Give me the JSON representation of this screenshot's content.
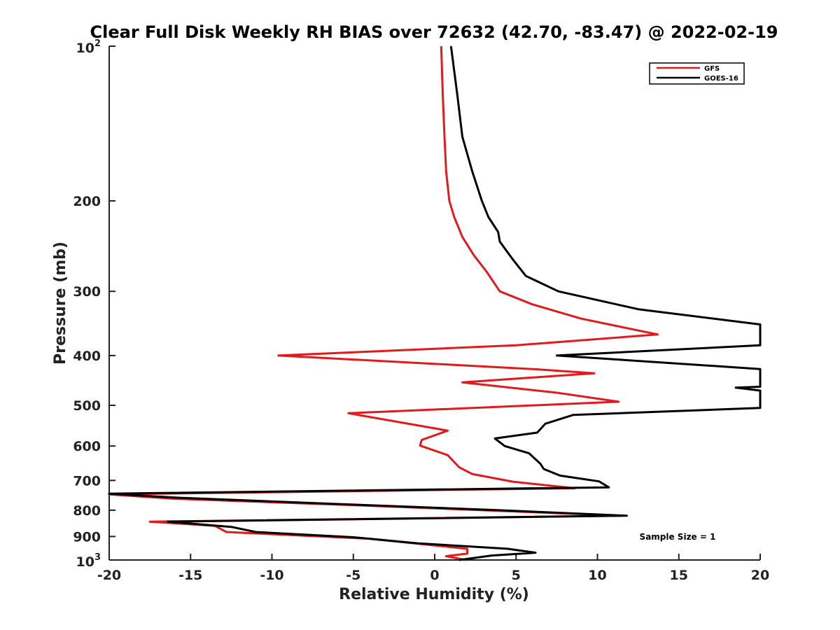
{
  "chart_data": {
    "type": "line",
    "title": "Clear Full Disk Weekly RH BIAS over 72632 (42.70, -83.47) @ 2022-02-19",
    "xlabel": "Relative Humidity (%)",
    "ylabel": "Pressure (mb)",
    "xlim": [
      -20,
      20
    ],
    "ylim": [
      100,
      1000
    ],
    "y_scale": "log",
    "y_reversed": true,
    "grid": false,
    "legend_position": "top-right",
    "x_ticks": [
      "-20",
      "-15",
      "-10",
      "-5",
      "0",
      "5",
      "10",
      "15",
      "20"
    ],
    "y_ticks": [
      {
        "value": 100,
        "base": "10",
        "exp": "2"
      },
      {
        "value": 200,
        "label": "200"
      },
      {
        "value": 300,
        "label": "300"
      },
      {
        "value": 400,
        "label": "400"
      },
      {
        "value": 500,
        "label": "500"
      },
      {
        "value": 600,
        "label": "600"
      },
      {
        "value": 700,
        "label": "700"
      },
      {
        "value": 800,
        "label": "800"
      },
      {
        "value": 900,
        "label": "900"
      },
      {
        "value": 1000,
        "base": "10",
        "exp": "3"
      }
    ],
    "annotation": "Sample Size = 1",
    "series": [
      {
        "name": "GFS",
        "color": "#e31a1c",
        "points": [
          [
            0.4,
            100
          ],
          [
            0.5,
            125
          ],
          [
            0.6,
            150
          ],
          [
            0.7,
            175
          ],
          [
            0.9,
            200
          ],
          [
            1.2,
            215
          ],
          [
            1.7,
            235
          ],
          [
            2.4,
            255
          ],
          [
            3.2,
            275
          ],
          [
            4.0,
            300
          ],
          [
            6.0,
            318
          ],
          [
            9.0,
            339
          ],
          [
            13.7,
            364
          ],
          [
            5.0,
            382
          ],
          [
            -9.6,
            400
          ],
          [
            6.0,
            425
          ],
          [
            9.8,
            433
          ],
          [
            1.7,
            451
          ],
          [
            7.6,
            473
          ],
          [
            11.3,
            492
          ],
          [
            -5.3,
            518
          ],
          [
            0.8,
            560
          ],
          [
            -0.8,
            584
          ],
          [
            -0.9,
            599
          ],
          [
            0.8,
            625
          ],
          [
            1.5,
            660
          ],
          [
            2.3,
            680
          ],
          [
            4.8,
            704
          ],
          [
            8.6,
            725
          ],
          [
            -20.0,
            745
          ],
          [
            -16.0,
            760
          ],
          [
            -5.0,
            782
          ],
          [
            11.5,
            820
          ],
          [
            -17.5,
            842
          ],
          [
            -13.5,
            858
          ],
          [
            -12.8,
            882
          ],
          [
            -4.0,
            909
          ],
          [
            2.0,
            951
          ],
          [
            2.0,
            972
          ],
          [
            0.7,
            983
          ],
          [
            1.9,
            1000
          ]
        ]
      },
      {
        "name": "GOES-16",
        "color": "#000000",
        "points": [
          [
            1.0,
            100
          ],
          [
            1.4,
            125
          ],
          [
            1.7,
            150
          ],
          [
            2.3,
            175
          ],
          [
            2.9,
            200
          ],
          [
            3.3,
            215
          ],
          [
            3.9,
            230
          ],
          [
            4.0,
            240
          ],
          [
            4.8,
            260
          ],
          [
            5.6,
            280
          ],
          [
            7.6,
            300
          ],
          [
            12.5,
            325
          ],
          [
            20.0,
            348
          ],
          [
            20.0,
            382
          ],
          [
            7.5,
            400
          ],
          [
            20.0,
            425
          ],
          [
            20.0,
            460
          ],
          [
            18.5,
            462
          ],
          [
            20.0,
            468
          ],
          [
            20.0,
            506
          ],
          [
            8.5,
            522
          ],
          [
            6.8,
            543
          ],
          [
            6.3,
            565
          ],
          [
            3.7,
            580
          ],
          [
            4.3,
            600
          ],
          [
            5.8,
            620
          ],
          [
            6.5,
            650
          ],
          [
            6.7,
            665
          ],
          [
            7.7,
            685
          ],
          [
            10.1,
            703
          ],
          [
            10.7,
            722
          ],
          [
            -20.0,
            743
          ],
          [
            -16.0,
            756
          ],
          [
            -6.0,
            778
          ],
          [
            4.0,
            800
          ],
          [
            11.8,
            820
          ],
          [
            -16.4,
            842
          ],
          [
            -12.5,
            862
          ],
          [
            -11.0,
            882
          ],
          [
            -5.0,
            903
          ],
          [
            -1.0,
            928
          ],
          [
            4.5,
            951
          ],
          [
            6.2,
            968
          ],
          [
            3.5,
            980
          ],
          [
            1.5,
            1000
          ]
        ]
      }
    ]
  }
}
